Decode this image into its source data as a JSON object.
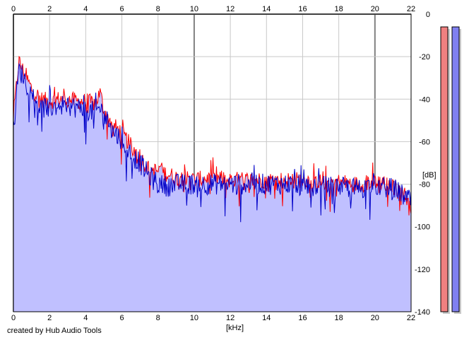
{
  "credit": "created by Hub Audio Tools",
  "chart_data": {
    "type": "area",
    "xlabel": "[kHz]",
    "ylabel": "[dB]",
    "xlim": [
      0,
      22
    ],
    "ylim": [
      -140,
      0
    ],
    "x_ticks": [
      0,
      2,
      4,
      6,
      8,
      10,
      12,
      14,
      16,
      18,
      20,
      22
    ],
    "y_ticks": [
      0,
      -20,
      -40,
      -60,
      -80,
      -100,
      -120,
      -140
    ],
    "grid": true,
    "colors": {
      "fill": "#c0c0ff",
      "series_red": "#ff0000",
      "series_blue": "#0000c8",
      "grid_light": "#c8c8c8",
      "grid_dark": "#808080",
      "meter_left": "#f08080",
      "meter_right": "#8080f0"
    },
    "series": [
      {
        "color": "#ff0000",
        "x": [
          0,
          0.3,
          0.6,
          1,
          1.5,
          2,
          2.5,
          3,
          3.5,
          4,
          4.5,
          4.8,
          5,
          5.5,
          6,
          6.5,
          7,
          7.5,
          8,
          8.5,
          9,
          9.5,
          10,
          11,
          12,
          13,
          14,
          15,
          16,
          17,
          18,
          19,
          20,
          21,
          21.5,
          22
        ],
        "values": [
          -48,
          -22,
          -28,
          -35,
          -40,
          -41,
          -40,
          -40,
          -41,
          -41,
          -42,
          -37,
          -45,
          -52,
          -56,
          -62,
          -67,
          -73,
          -74,
          -75,
          -77,
          -77,
          -78,
          -77,
          -78,
          -78,
          -78,
          -78,
          -78,
          -79,
          -79,
          -80,
          -79,
          -81,
          -83,
          -90
        ]
      },
      {
        "color": "#0000c8",
        "x": [
          0,
          0.3,
          0.6,
          1,
          1.5,
          2,
          2.5,
          3,
          3.5,
          4,
          4.5,
          4.8,
          5,
          5.5,
          6,
          6.5,
          7,
          7.5,
          8,
          8.5,
          9,
          9.5,
          10,
          11,
          12,
          13,
          14,
          15,
          16,
          17,
          18,
          19,
          20,
          21,
          21.5,
          22
        ],
        "values": [
          -55,
          -26,
          -30,
          -38,
          -44,
          -44,
          -43,
          -43,
          -44,
          -45,
          -46,
          -44,
          -47,
          -55,
          -59,
          -66,
          -70,
          -76,
          -80,
          -81,
          -80,
          -80,
          -80,
          -80,
          -80,
          -80,
          -80,
          -80,
          -80,
          -81,
          -81,
          -82,
          -81,
          -82,
          -85,
          -88
        ]
      }
    ],
    "meters": [
      {
        "value_db": -6
      },
      {
        "value_db": -6
      }
    ]
  }
}
